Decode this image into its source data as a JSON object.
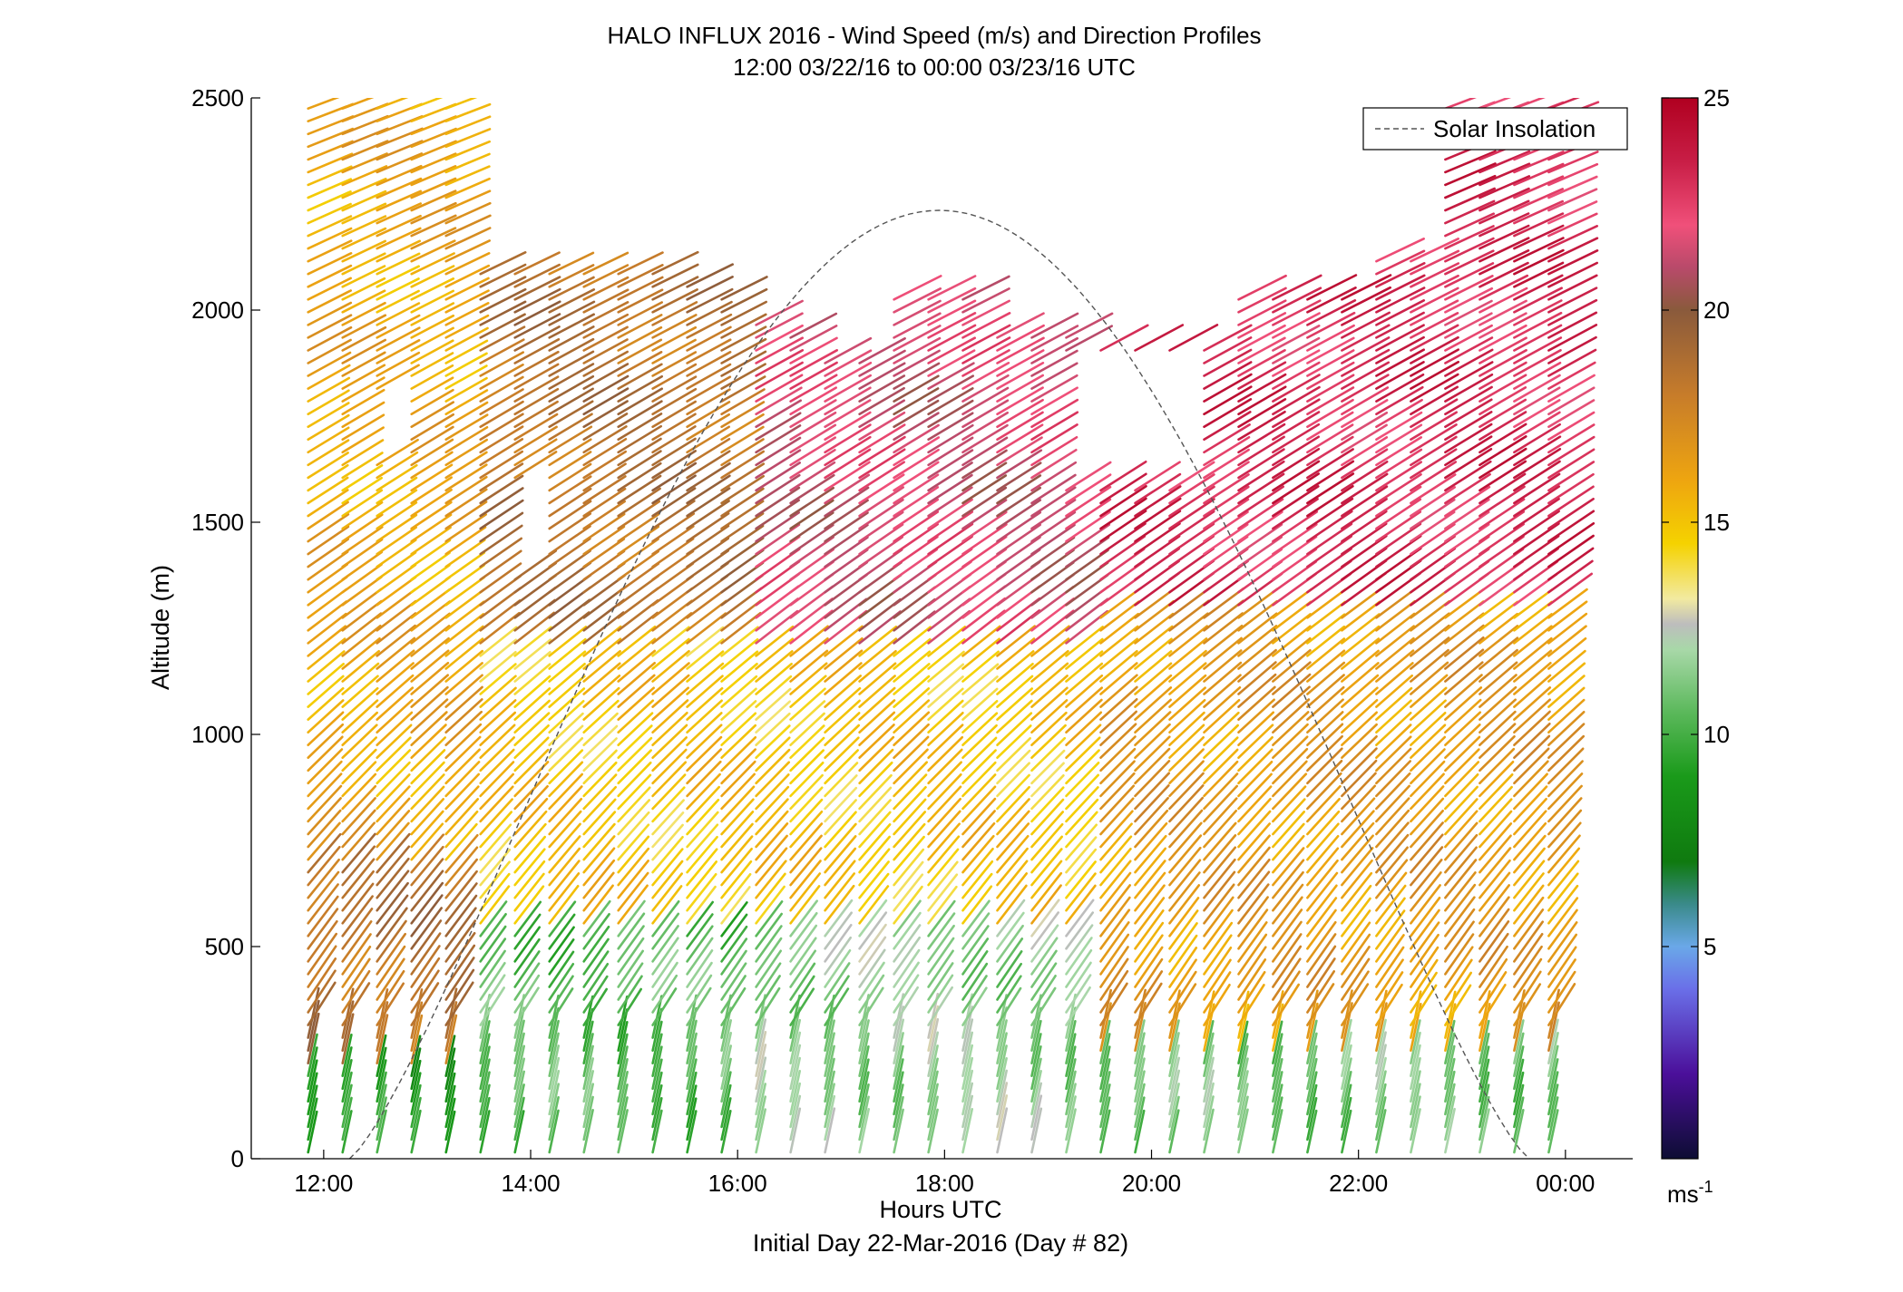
{
  "chart_data": {
    "type": "vector-profile",
    "title": "HALO INFLUX 2016 - Wind Speed (m/s) and Direction Profiles",
    "subtitle": "12:00 03/22/16 to 00:00 03/23/16  UTC",
    "xlabel": "Hours UTC",
    "xlabel2": "Initial Day 22-Mar-2016 (Day # 82)",
    "ylabel": "Altitude (m)",
    "xlim_hours": [
      11.3,
      24.65
    ],
    "ylim": [
      0,
      2500
    ],
    "x_ticks": [
      {
        "value": 12,
        "label": "12:00"
      },
      {
        "value": 14,
        "label": "14:00"
      },
      {
        "value": 16,
        "label": "16:00"
      },
      {
        "value": 18,
        "label": "18:00"
      },
      {
        "value": 20,
        "label": "20:00"
      },
      {
        "value": 22,
        "label": "22:00"
      },
      {
        "value": 24,
        "label": "00:00"
      }
    ],
    "y_ticks": [
      0,
      500,
      1000,
      1500,
      2000,
      2500
    ],
    "legend": {
      "label": "Solar Insolation",
      "position": "top-right",
      "style": "dashed",
      "color": "#555555"
    },
    "solar_insolation": {
      "shape": "arch",
      "start_hour": 12.25,
      "peak_hour": 17.95,
      "peak_altitude_equiv": 2235,
      "end_hour": 23.65
    },
    "colorbar": {
      "min": 0,
      "max": 25,
      "ticks": [
        5,
        10,
        15,
        20,
        25
      ],
      "unit": "ms",
      "unit_exp": "-1",
      "stops": [
        {
          "v": 0,
          "c": "#0d0d33"
        },
        {
          "v": 2,
          "c": "#4b0f9a"
        },
        {
          "v": 4,
          "c": "#6a6fe8"
        },
        {
          "v": 5,
          "c": "#6aa8e8"
        },
        {
          "v": 6,
          "c": "#3a8a8a"
        },
        {
          "v": 7,
          "c": "#0f7a0f"
        },
        {
          "v": 9,
          "c": "#1a9a1a"
        },
        {
          "v": 10.5,
          "c": "#5ab85a"
        },
        {
          "v": 12,
          "c": "#a8d8a8"
        },
        {
          "v": 12.6,
          "c": "#bdbdbd"
        },
        {
          "v": 13.2,
          "c": "#f2eaa0"
        },
        {
          "v": 14.5,
          "c": "#f5d200"
        },
        {
          "v": 16,
          "c": "#eea510"
        },
        {
          "v": 18,
          "c": "#c77c2a"
        },
        {
          "v": 20,
          "c": "#8a5a3c"
        },
        {
          "v": 21,
          "c": "#b84a6a"
        },
        {
          "v": 22,
          "c": "#f0507a"
        },
        {
          "v": 23.5,
          "c": "#c81e46"
        },
        {
          "v": 25,
          "c": "#b00020"
        }
      ]
    },
    "profiles": {
      "start_hour": 11.85,
      "end_hour": 23.85,
      "interval_hours": 0.333,
      "altitude_step_m": 30,
      "direction_note": "vectors point toward upper-right; steeper near surface, shallower aloft",
      "speed_regimes": [
        {
          "hours": [
            11.85,
            13.5
          ],
          "alt_m": [
            0,
            200
          ],
          "speed": 9
        },
        {
          "hours": [
            11.85,
            13.5
          ],
          "alt_m": [
            200,
            700
          ],
          "speed": 18.5
        },
        {
          "hours": [
            11.85,
            13.5
          ],
          "alt_m": [
            700,
            2500
          ],
          "speed": 16
        },
        {
          "hours": [
            13.5,
            16
          ],
          "alt_m": [
            0,
            550
          ],
          "speed": 10.5
        },
        {
          "hours": [
            13.5,
            16
          ],
          "alt_m": [
            550,
            1200
          ],
          "speed": 15
        },
        {
          "hours": [
            13.5,
            16.6
          ],
          "alt_m": [
            1200,
            2100
          ],
          "speed": 18.5
        },
        {
          "hours": [
            16,
            19.5
          ],
          "alt_m": [
            0,
            550
          ],
          "speed": 11.5
        },
        {
          "hours": [
            16,
            19.5
          ],
          "alt_m": [
            550,
            1200
          ],
          "speed": 15
        },
        {
          "hours": [
            16,
            19.5
          ],
          "alt_m": [
            1200,
            2050
          ],
          "speed": 21.5
        },
        {
          "hours": [
            19.5,
            23.85
          ],
          "alt_m": [
            0,
            250
          ],
          "speed": 11
        },
        {
          "hours": [
            19.5,
            23.85
          ],
          "alt_m": [
            250,
            1300
          ],
          "speed": 16.5
        },
        {
          "hours": [
            19.5,
            23.85
          ],
          "alt_m": [
            1300,
            2500
          ],
          "speed": 23
        }
      ]
    }
  }
}
